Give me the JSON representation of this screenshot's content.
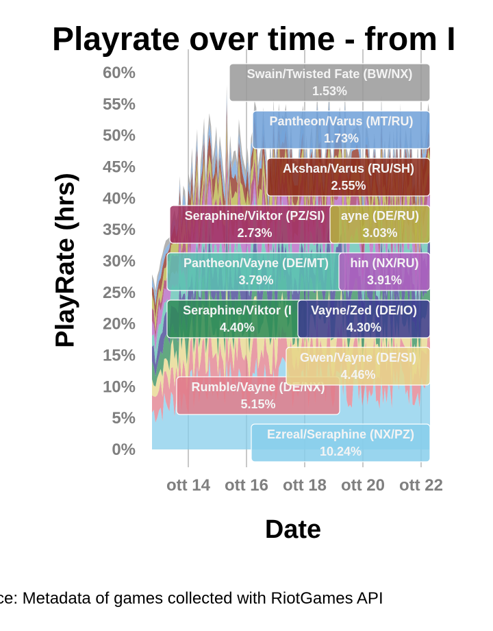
{
  "title": "Playrate over time - from I",
  "caption": "ce: Metadata of games collected with RiotGames API",
  "chart_data": {
    "type": "area",
    "title": "Playrate over time - from I",
    "xlabel": "Date",
    "ylabel": "PlayRate (hrs)",
    "y_ticks": [
      "0%",
      "5%",
      "10%",
      "15%",
      "20%",
      "25%",
      "30%",
      "35%",
      "40%",
      "45%",
      "50%",
      "55%",
      "60%"
    ],
    "x_ticks": [
      "ott 14",
      "ott 16",
      "ott 18",
      "ott 20",
      "ott 22"
    ],
    "ylim": [
      0,
      60
    ],
    "grid": true,
    "series": [
      {
        "name": "Ezreal/Seraphine (NX/PZ)",
        "value_label": "10.24%",
        "color": "#87ceeb"
      },
      {
        "name": "Rumble/Vayne (DE/NX)",
        "value_label": "5.15%",
        "color": "#e07b8a"
      },
      {
        "name": "Gwen/Vayne (DE/SI)",
        "value_label": "4.46%",
        "color": "#e6d588"
      },
      {
        "name": "Seraphine/Viktor (I",
        "value_label": "4.40%",
        "color": "#2e8b57"
      },
      {
        "name": "Vayne/Zed (DE/IO)",
        "value_label": "4.30%",
        "color": "#3b3b8f"
      },
      {
        "name": "Pantheon/Vayne (DE/MT)",
        "value_label": "3.79%",
        "color": "#5bbfb0"
      },
      {
        "name": "hin (NX/RU)",
        "value_label": "3.91%",
        "color": "#b260c0"
      },
      {
        "name": "Seraphine/Viktor (PZ/SI)",
        "value_label": "2.73%",
        "color": "#a03060"
      },
      {
        "name": "ayne (DE/RU)",
        "value_label": "3.03%",
        "color": "#b5b040"
      },
      {
        "name": "Akshan/Varus (RU/SH)",
        "value_label": "2.55%",
        "color": "#8b2a1a"
      },
      {
        "name": "Pantheon/Varus (MT/RU)",
        "value_label": "1.73%",
        "color": "#6fa0d8"
      },
      {
        "name": "Swain/Twisted Fate (BW/NX)",
        "value_label": "1.53%",
        "color": "#999999"
      }
    ]
  }
}
